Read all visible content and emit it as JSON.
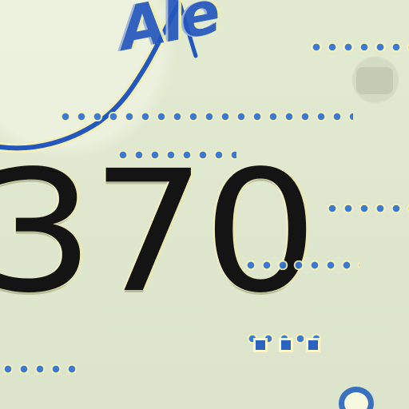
{
  "artifact": {
    "main_number": "370",
    "handwriting": "Ale",
    "colors": {
      "background": "#dfe7cf",
      "ink_black": "#141414",
      "ink_blue": "#2457bd",
      "dot_blue": "#3375d2",
      "highlight_yellow": "#f3f0c3"
    },
    "icons": [
      "dotted-leader-lines",
      "blue-pen-stroke",
      "circular-glyph"
    ]
  }
}
